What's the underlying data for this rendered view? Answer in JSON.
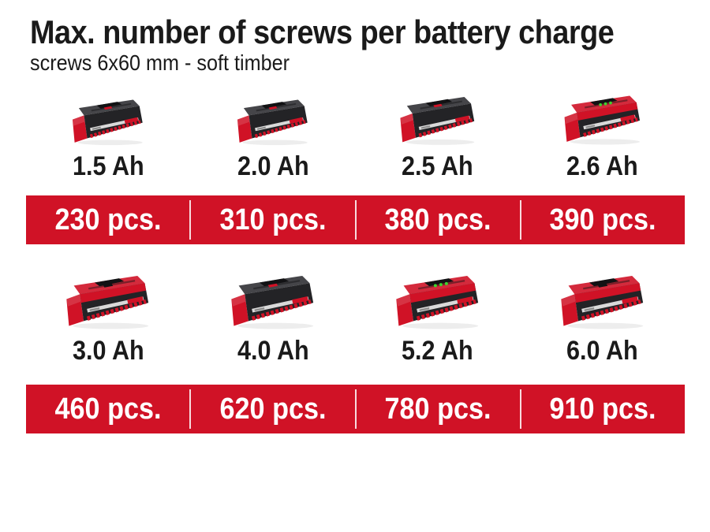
{
  "title": "Max. number of screws per battery charge",
  "subtitle": "screws 6x60 mm - soft timber",
  "unit": "pcs.",
  "colors": {
    "brand_red": "#d01226",
    "text": "#1a1a1a",
    "band_text": "#ffffff",
    "led_green": "#3bd42e"
  },
  "rows": [
    {
      "batteries": [
        {
          "capacity": "1.5 Ah",
          "variant": "dark-body"
        },
        {
          "capacity": "2.0 Ah",
          "variant": "dark-body"
        },
        {
          "capacity": "2.5 Ah",
          "variant": "dark-body"
        },
        {
          "capacity": "2.6 Ah",
          "variant": "red-top-leds"
        }
      ],
      "values": [
        "230 pcs.",
        "310 pcs.",
        "380 pcs.",
        "390 pcs."
      ]
    },
    {
      "batteries": [
        {
          "capacity": "3.0 Ah",
          "variant": "red-top"
        },
        {
          "capacity": "4.0 Ah",
          "variant": "dark-body"
        },
        {
          "capacity": "5.2 Ah",
          "variant": "red-top-leds"
        },
        {
          "capacity": "6.0 Ah",
          "variant": "red-top"
        }
      ],
      "values": [
        "460 pcs.",
        "620 pcs.",
        "780 pcs.",
        "910 pcs."
      ]
    }
  ],
  "chart_data": {
    "type": "table",
    "title": "Max. number of screws per battery charge",
    "subtitle": "screws 6x60 mm - soft timber",
    "categories": [
      "1.5 Ah",
      "2.0 Ah",
      "2.5 Ah",
      "2.6 Ah",
      "3.0 Ah",
      "4.0 Ah",
      "5.2 Ah",
      "6.0 Ah"
    ],
    "values": [
      230,
      310,
      380,
      390,
      460,
      620,
      780,
      910
    ],
    "unit": "pcs.",
    "layout": "2 rows x 4 columns, battery photo above capacity label, values in red bands"
  }
}
